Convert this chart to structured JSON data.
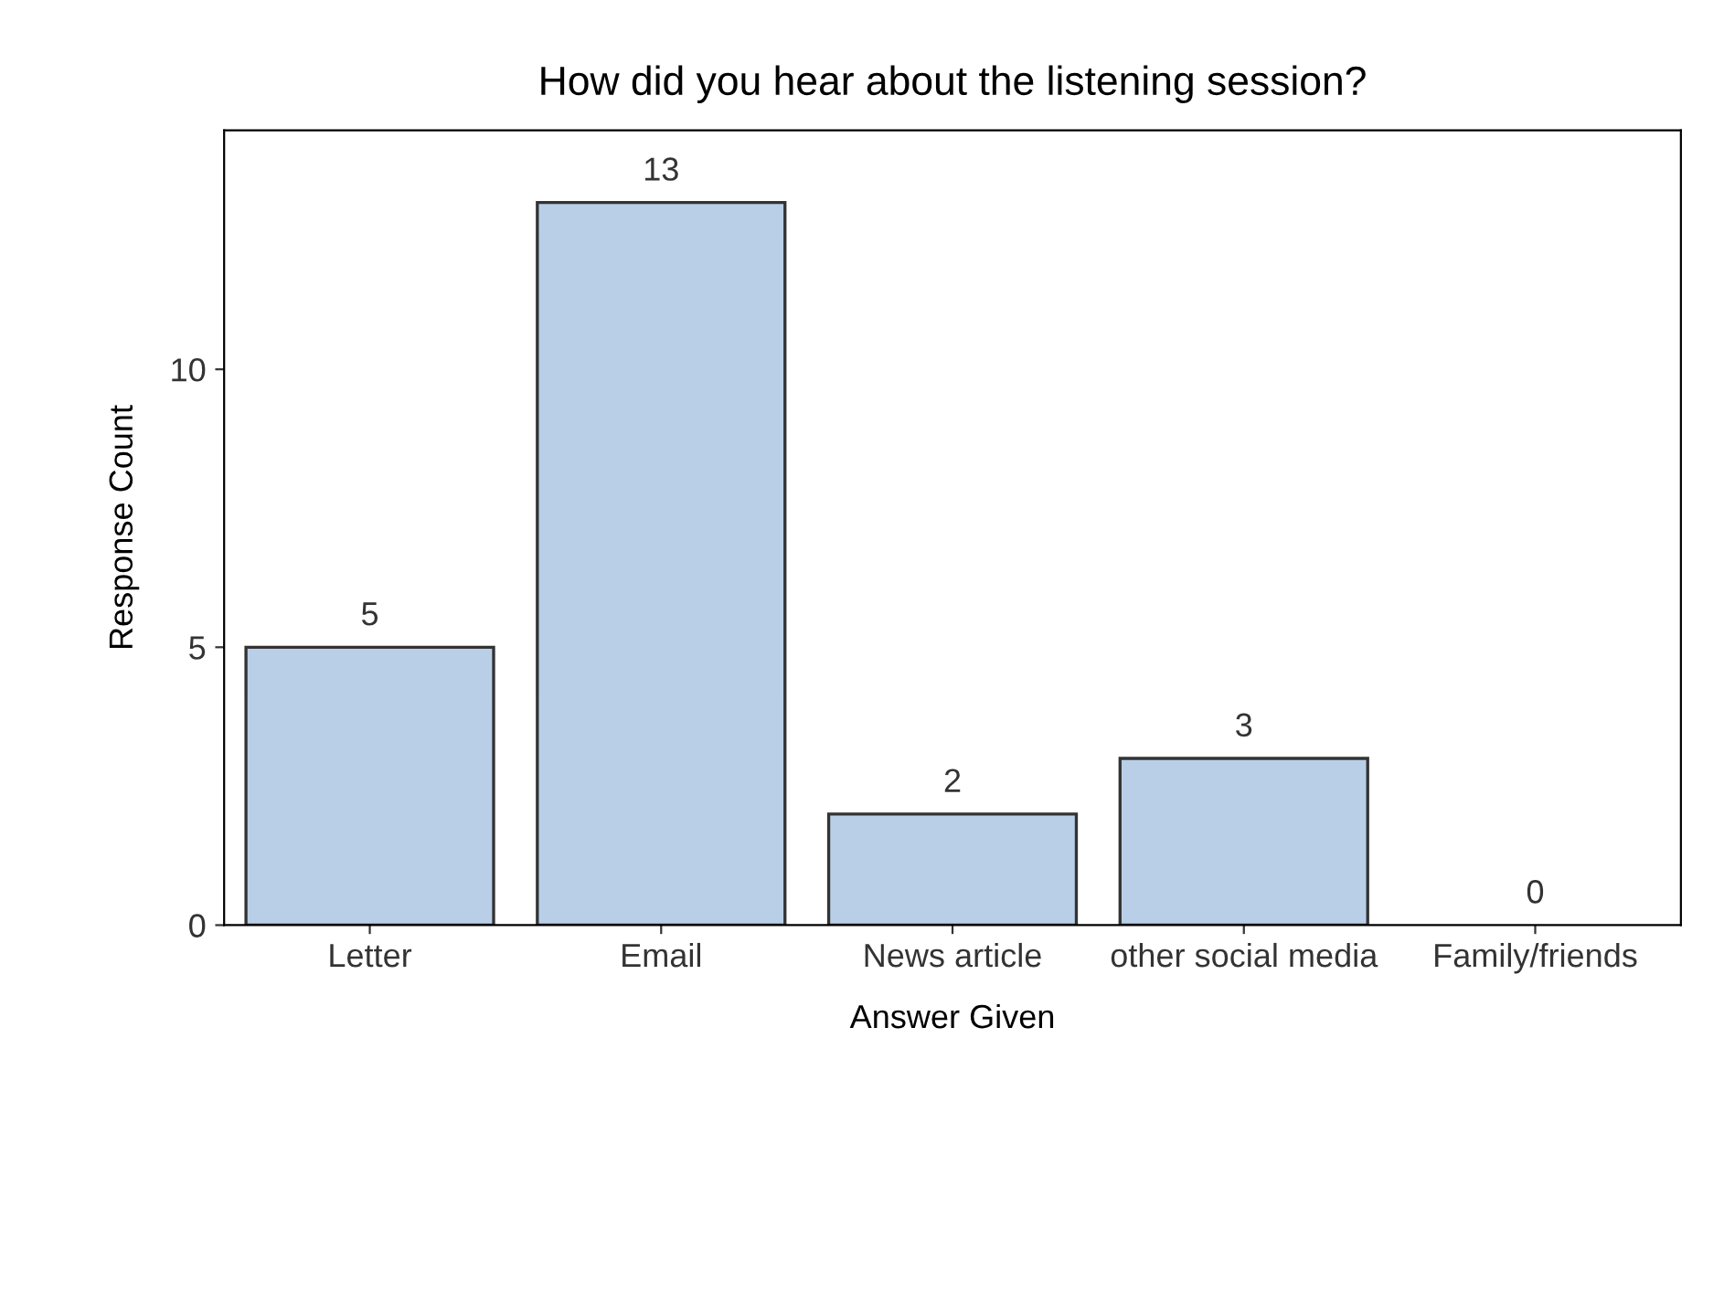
{
  "chart_data": {
    "type": "bar",
    "title": "How did you hear about the listening session?",
    "xlabel": "Answer Given",
    "ylabel": "Response Count",
    "categories": [
      "Letter",
      "Email",
      "News article",
      "other social media",
      "Family/friends"
    ],
    "values": [
      5,
      13,
      2,
      3,
      0
    ],
    "color": "#b9cfe7",
    "ylim": [
      0,
      14.3
    ],
    "yticks": [
      0,
      5,
      10
    ],
    "data_labels": true,
    "grid": false,
    "legend": false
  }
}
